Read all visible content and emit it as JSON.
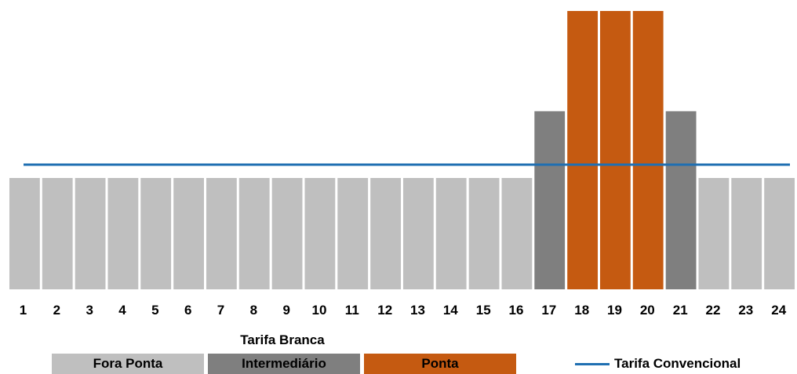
{
  "chart_data": {
    "type": "bar",
    "categories": [
      "1",
      "2",
      "3",
      "4",
      "5",
      "6",
      "7",
      "8",
      "9",
      "10",
      "11",
      "12",
      "13",
      "14",
      "15",
      "16",
      "17",
      "18",
      "19",
      "20",
      "21",
      "22",
      "23",
      "24"
    ],
    "values": [
      1,
      1,
      1,
      1,
      1,
      1,
      1,
      1,
      1,
      1,
      1,
      1,
      1,
      1,
      1,
      1,
      1.6,
      2.5,
      2.5,
      2.5,
      1.6,
      1,
      1,
      1
    ],
    "bar_classes": [
      "fora",
      "fora",
      "fora",
      "fora",
      "fora",
      "fora",
      "fora",
      "fora",
      "fora",
      "fora",
      "fora",
      "fora",
      "fora",
      "fora",
      "fora",
      "fora",
      "inter",
      "ponta",
      "ponta",
      "ponta",
      "inter",
      "fora",
      "fora",
      "fora"
    ],
    "line": {
      "name": "Tarifa Convencional",
      "value": 1.12
    },
    "xlabel": "Tarifa Branca",
    "ylabel": "",
    "ylim": [
      0,
      2.5
    ],
    "grid": false,
    "legend_placement": "bottom"
  },
  "legend": {
    "fora": {
      "label": "Fora Ponta",
      "color": "#bfbfbf"
    },
    "inter": {
      "label": "Intermediário",
      "color": "#7f7f7f"
    },
    "ponta": {
      "label": "Ponta",
      "color": "#c55a11"
    },
    "line": {
      "label": "Tarifa Convencional",
      "color": "#1f6fb2"
    }
  }
}
